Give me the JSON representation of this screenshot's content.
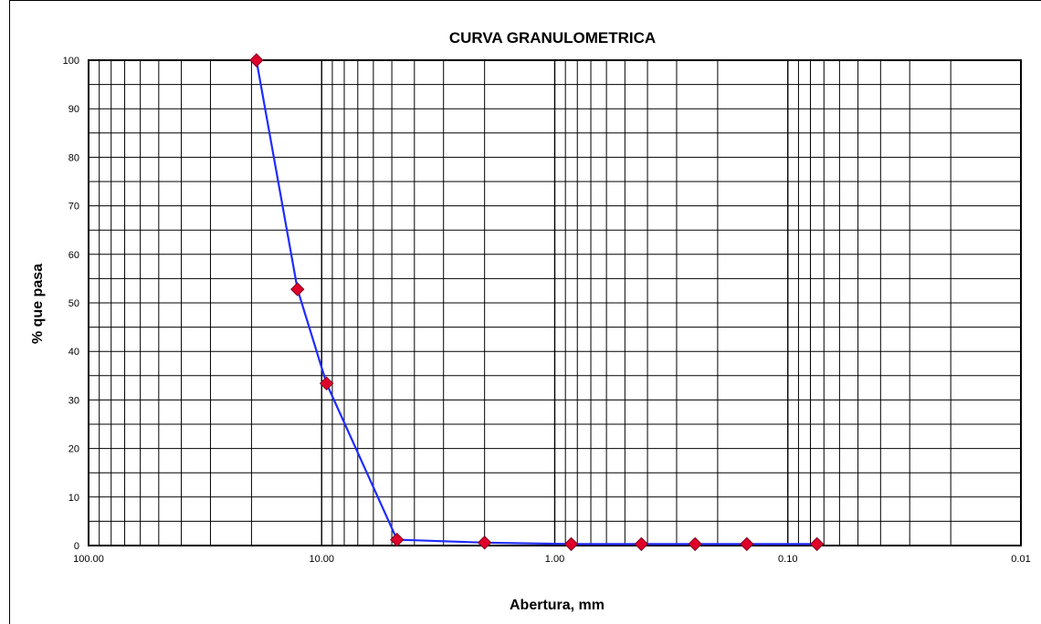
{
  "chart_data": {
    "type": "line",
    "title": "CURVA GRANULOMETRICA",
    "xlabel": "Abertura, mm",
    "ylabel": "% que pasa",
    "xscale": "log",
    "xaxis_reversed": true,
    "xlim": [
      100,
      0.01
    ],
    "ylim": [
      0,
      100
    ],
    "grid": true,
    "legend": "none",
    "x_ticks": [
      "100.00",
      "10.00",
      "1.00",
      "0.10",
      "0.01"
    ],
    "x_tick_values": [
      100,
      10,
      1,
      0.1,
      0.01
    ],
    "y_ticks": [
      "0",
      "10",
      "20",
      "30",
      "40",
      "50",
      "60",
      "70",
      "80",
      "90",
      "100"
    ],
    "y_tick_values": [
      0,
      10,
      20,
      30,
      40,
      50,
      60,
      70,
      80,
      90,
      100
    ],
    "series": [
      {
        "x": [
          19.05,
          12.7,
          9.525,
          4.75,
          2.0,
          0.85,
          0.425,
          0.25,
          0.15,
          0.075
        ],
        "y": [
          100,
          52.8,
          33.4,
          1.2,
          0.6,
          0.3,
          0.3,
          0.3,
          0.3,
          0.3
        ]
      }
    ],
    "colors": {
      "line": "#1f2bff",
      "marker": "#e0002a",
      "marker_edge": "#7a0020",
      "grid": "#000000"
    }
  }
}
